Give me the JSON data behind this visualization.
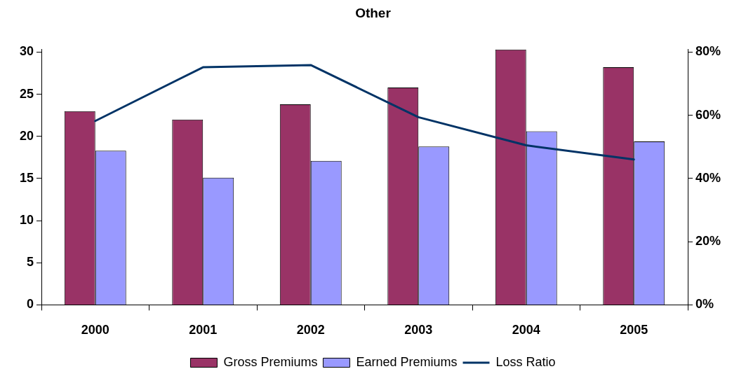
{
  "chart_data": {
    "type": "bar",
    "title": "Other",
    "categories": [
      "2000",
      "2001",
      "2002",
      "2003",
      "2004",
      "2005"
    ],
    "series": [
      {
        "name": "Gross Premiums",
        "color": "#993366",
        "values": [
          23.0,
          22.0,
          23.8,
          25.8,
          30.3,
          28.2
        ]
      },
      {
        "name": "Earned Premiums",
        "color": "#9999ff",
        "values": [
          18.3,
          15.1,
          17.1,
          18.8,
          20.6,
          19.4
        ]
      },
      {
        "name": "Loss Ratio",
        "color": "#003366",
        "type": "line",
        "axis": "y2",
        "values": [
          58.2,
          75.2,
          75.9,
          59.4,
          50.5,
          46.0
        ]
      }
    ],
    "ylim": [
      0,
      30.3
    ],
    "yticks": [
      0,
      5,
      10,
      15,
      20,
      25,
      30
    ],
    "y2lim": [
      0,
      80.8
    ],
    "y2ticks": [
      {
        "value": 0,
        "label": "0%"
      },
      {
        "value": 20,
        "label": "20%"
      },
      {
        "value": 40,
        "label": "40%"
      },
      {
        "value": 60,
        "label": "60%"
      },
      {
        "value": 80,
        "label": "80%"
      }
    ],
    "legend": "bottom"
  }
}
